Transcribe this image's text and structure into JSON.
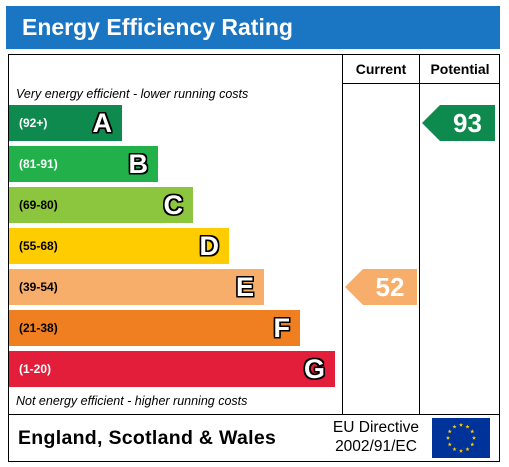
{
  "header": {
    "title": "Energy Efficiency Rating"
  },
  "columns": {
    "current": "Current",
    "potential": "Potential"
  },
  "notes": {
    "top": "Very energy efficient - lower running costs",
    "bottom": "Not energy efficient - higher running costs"
  },
  "colors": {
    "header_bg": "#1a75c2",
    "A": "#0f8a4e",
    "B": "#22b04b",
    "C": "#8cc63e",
    "D": "#ffcc00",
    "E": "#f7ae6b",
    "F": "#f07f22",
    "G": "#e31e3a"
  },
  "chart_data": {
    "type": "bar",
    "title": "Energy Efficiency Rating",
    "categories": [
      "A",
      "B",
      "C",
      "D",
      "E",
      "F",
      "G"
    ],
    "series": [
      {
        "name": "Current",
        "values": [
          null,
          null,
          null,
          null,
          52,
          null,
          null
        ]
      },
      {
        "name": "Potential",
        "values": [
          93,
          null,
          null,
          null,
          null,
          null,
          null
        ]
      }
    ],
    "bands": [
      {
        "letter": "A",
        "range": "(92+)",
        "min": 92,
        "max": 100
      },
      {
        "letter": "B",
        "range": "(81-91)",
        "min": 81,
        "max": 91
      },
      {
        "letter": "C",
        "range": "(69-80)",
        "min": 69,
        "max": 80
      },
      {
        "letter": "D",
        "range": "(55-68)",
        "min": 55,
        "max": 68
      },
      {
        "letter": "E",
        "range": "(39-54)",
        "min": 39,
        "max": 54
      },
      {
        "letter": "F",
        "range": "(21-38)",
        "min": 21,
        "max": 38
      },
      {
        "letter": "G",
        "range": "(1-20)",
        "min": 1,
        "max": 20
      }
    ],
    "current": {
      "value": 52,
      "band": "E"
    },
    "potential": {
      "value": 93,
      "band": "A"
    }
  },
  "footer": {
    "region": "England, Scotland & Wales",
    "directive_line1": "EU Directive",
    "directive_line2": "2002/91/EC",
    "flag_icon": "eu-flag-icon"
  }
}
